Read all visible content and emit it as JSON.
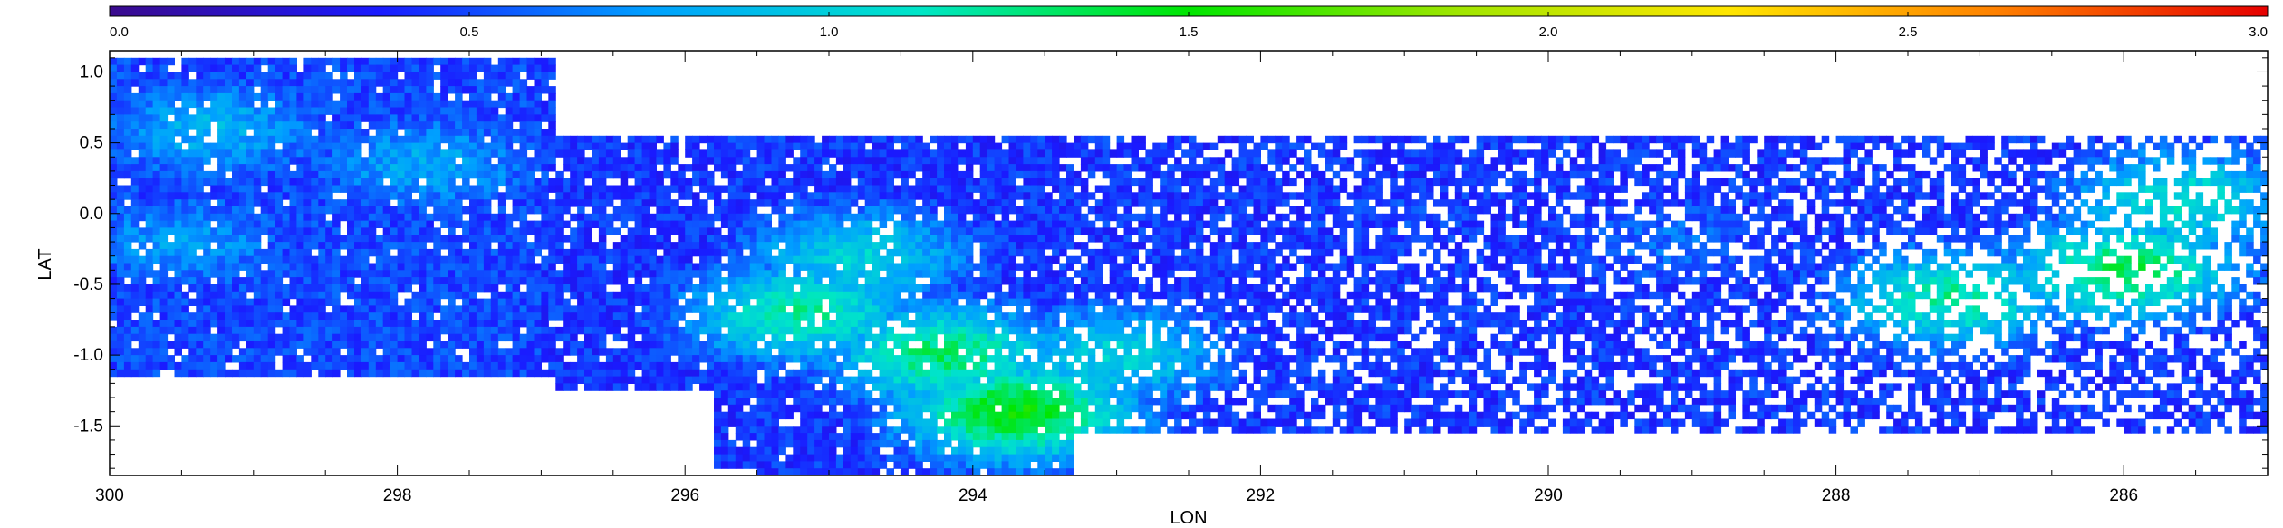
{
  "chart_data": {
    "type": "heatmap",
    "xlabel": "LON",
    "ylabel": "LAT",
    "xlim": [
      300,
      285
    ],
    "ylim": [
      -1.85,
      1.15
    ],
    "x_ticks": [
      "300",
      "298",
      "296",
      "294",
      "292",
      "290",
      "288",
      "286"
    ],
    "y_ticks": [
      "1.0",
      "0.5",
      "0.0",
      "-0.5",
      "-1.0",
      "-1.5"
    ],
    "colorbar": {
      "range": [
        0.0,
        3.0
      ],
      "ticks": [
        "0.0",
        "0.5",
        "1.0",
        "1.5",
        "2.0",
        "2.5",
        "3.0"
      ],
      "colormap": "rainbow",
      "colors": [
        "#3a0a8c",
        "#1a1aff",
        "#00a0ff",
        "#00e6c8",
        "#00e600",
        "#a0e600",
        "#ffe600",
        "#ff8000",
        "#e60000"
      ]
    },
    "coverage": [
      {
        "lon_max": 300.0,
        "lon_min": 296.9,
        "lat_min": -1.15,
        "lat_max": 1.12
      },
      {
        "lon_max": 296.9,
        "lon_min": 295.8,
        "lat_min": -1.25,
        "lat_max": 0.55
      },
      {
        "lon_max": 295.8,
        "lon_min": 295.5,
        "lat_min": -1.82,
        "lat_max": 0.55
      },
      {
        "lon_max": 295.5,
        "lon_min": 293.3,
        "lat_min": -1.85,
        "lat_max": 0.55
      },
      {
        "lon_max": 293.3,
        "lon_min": 285.0,
        "lat_min": -1.55,
        "lat_max": 0.55
      }
    ],
    "features": [
      {
        "lon": 293.7,
        "lat": -1.4,
        "value": 1.5
      },
      {
        "lon": 294.2,
        "lat": -1.0,
        "value": 1.3
      },
      {
        "lon": 295.2,
        "lat": -0.7,
        "value": 1.2
      },
      {
        "lon": 294.8,
        "lat": -0.3,
        "value": 1.0
      },
      {
        "lon": 293.0,
        "lat": -1.0,
        "value": 1.0
      },
      {
        "lon": 287.2,
        "lat": -0.6,
        "value": 1.2
      },
      {
        "lon": 286.0,
        "lat": -0.4,
        "value": 1.35
      },
      {
        "lon": 285.6,
        "lat": 0.1,
        "value": 1.1
      },
      {
        "lon": 299.3,
        "lat": 0.6,
        "value": 0.85
      },
      {
        "lon": 297.8,
        "lat": 0.35,
        "value": 0.8
      },
      {
        "lon": 299.5,
        "lat": -0.2,
        "value": 0.75
      },
      {
        "lon": 296.5,
        "lat": 0.1,
        "value": 0.3
      },
      {
        "lon": 297.0,
        "lat": -0.4,
        "value": 0.4
      },
      {
        "lon": 291.0,
        "lat": 0.0,
        "value": 0.5
      },
      {
        "lon": 289.2,
        "lat": -0.2,
        "value": 0.6
      }
    ]
  }
}
